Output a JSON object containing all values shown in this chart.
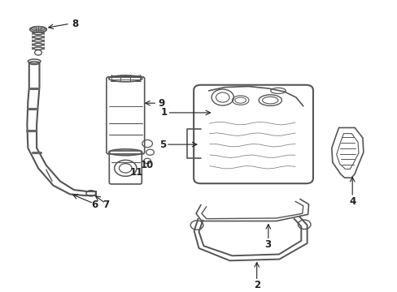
{
  "bg_color": "#ffffff",
  "line_color": "#555555",
  "text_color": "#222222",
  "fig_width": 4.89,
  "fig_height": 3.6,
  "dpi": 100
}
